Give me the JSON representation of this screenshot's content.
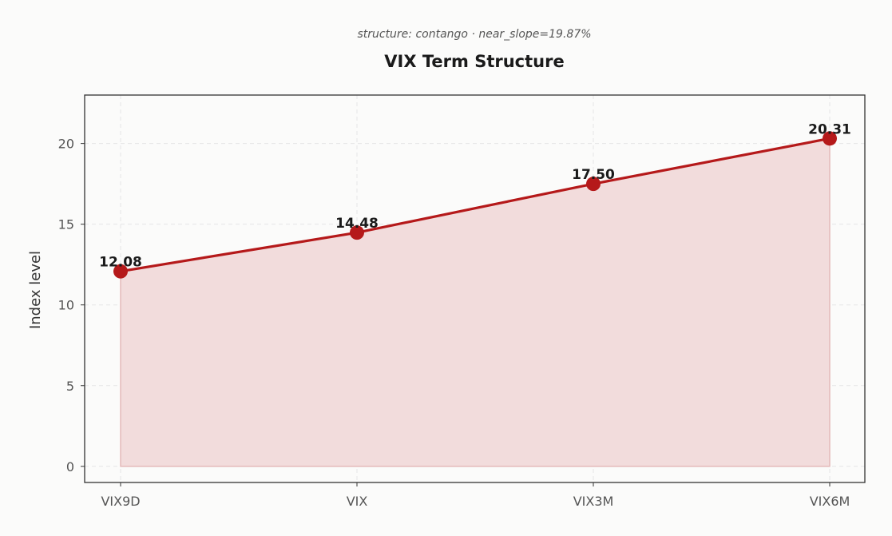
{
  "chart_data": {
    "type": "line",
    "title": "VIX Term Structure",
    "subtitle": "structure: contango · near_slope=19.87%",
    "xlabel": "",
    "ylabel": "Index level",
    "categories": [
      "VIX9D",
      "VIX",
      "VIX3M",
      "VIX6M"
    ],
    "series": [
      {
        "values": [
          12.08,
          14.48,
          17.5,
          20.31
        ],
        "labels": [
          "12.08",
          "14.48",
          "17.50",
          "20.31"
        ]
      }
    ],
    "ylim": [
      -1,
      23
    ],
    "yticks": [
      0,
      5,
      10,
      15,
      20
    ],
    "ytick_labels": [
      "0",
      "5",
      "10",
      "15",
      "20"
    ],
    "grid": true,
    "area_fill": true,
    "colors": {
      "line": "#b5191a",
      "marker": "#b5191a",
      "fill": "#f2dcdc",
      "fill_edge": "#e4b9b9"
    }
  }
}
